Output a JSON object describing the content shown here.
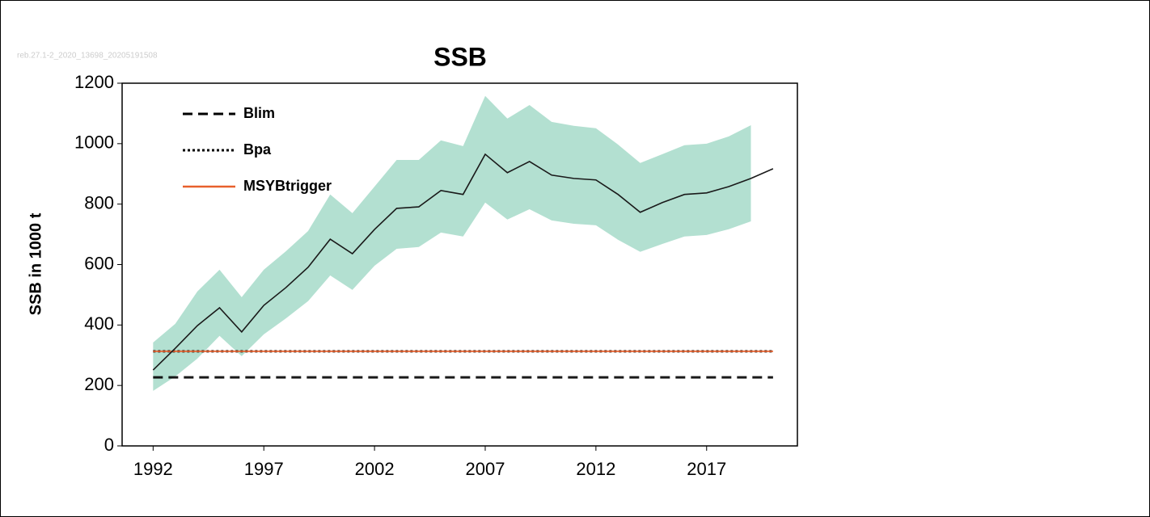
{
  "chart_data": {
    "type": "line",
    "title": "SSB",
    "watermark": "reb.27.1-2_2020_13698_20205191508",
    "y_label": "SSB in 1000 t",
    "x": [
      1992,
      1993,
      1994,
      1995,
      1996,
      1997,
      1998,
      1999,
      2000,
      2001,
      2002,
      2003,
      2004,
      2005,
      2006,
      2007,
      2008,
      2009,
      2010,
      2011,
      2012,
      2013,
      2014,
      2015,
      2016,
      2017,
      2018,
      2019,
      2020
    ],
    "series": [
      {
        "color": "#1a1a1a",
        "values": [
          251,
          323,
          398,
          457,
          377,
          465,
          524,
          591,
          684,
          636,
          716,
          786,
          791,
          845,
          832,
          965,
          904,
          941,
          896,
          885,
          880,
          832,
          773,
          805,
          832,
          837,
          858,
          885,
          917
        ]
      }
    ],
    "band": {
      "color": "#b3e0d1",
      "upper": [
        342,
        404,
        511,
        583,
        492,
        583,
        644,
        711,
        832,
        770,
        858,
        946,
        946,
        1011,
        992,
        1158,
        1083,
        1128,
        1072,
        1059,
        1051,
        997,
        936,
        965,
        995,
        1000,
        1024,
        1061,
        null
      ],
      "lower": [
        182,
        230,
        289,
        364,
        297,
        369,
        422,
        479,
        564,
        516,
        596,
        652,
        658,
        706,
        693,
        805,
        749,
        783,
        746,
        735,
        730,
        682,
        642,
        668,
        693,
        698,
        717,
        743,
        null
      ]
    },
    "reference_lines": [
      {
        "name": "Blim",
        "value": 227,
        "style": "dashed",
        "color": "#000000"
      },
      {
        "name": "Bpa",
        "value": 313,
        "style": "dotted",
        "color": "#000000"
      },
      {
        "name": "MSYBtrigger",
        "value": 313,
        "style": "solid",
        "color": "#e8602c"
      }
    ],
    "xlim": [
      1990.6,
      2021.1
    ],
    "ylim": [
      0,
      1200
    ],
    "xticks": [
      1992,
      1997,
      2002,
      2007,
      2012,
      2017
    ],
    "yticks": [
      0,
      200,
      400,
      600,
      800,
      1000,
      1200
    ]
  }
}
